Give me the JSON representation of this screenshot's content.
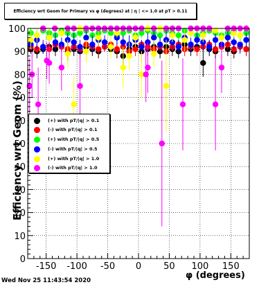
{
  "title": "Efficiency wrt Geom for Primary vs φ (degrees) at | η | <= 1.0 at pT > 0.11",
  "timestamp": "Wed Nov 25 11:43:54 2020",
  "chart_data": {
    "type": "scatter",
    "xlabel": "φ (degrees)",
    "ylabel": "Efficiency wrt Geom (%)",
    "xlim": [
      -180,
      180
    ],
    "ylim": [
      0,
      100
    ],
    "x_ticks": [
      "-150",
      "-100",
      "-50",
      "0",
      "50",
      "100",
      "150"
    ],
    "y_ticks": [
      "0",
      "10",
      "20",
      "30",
      "40",
      "50",
      "60",
      "70",
      "80",
      "90",
      "100"
    ],
    "grid": true,
    "legend_position": "middle-left",
    "series": [
      {
        "name": "(+) with pT/|q| > 0.1",
        "color": "#000000",
        "x": [
          -175,
          -165,
          -155,
          -145,
          -135,
          -125,
          -115,
          -105,
          -95,
          -85,
          -75,
          -65,
          -55,
          -45,
          -35,
          -25,
          -15,
          -5,
          5,
          15,
          25,
          35,
          45,
          55,
          65,
          75,
          85,
          95,
          105,
          115,
          125,
          135,
          145,
          155,
          165,
          175
        ],
        "y": [
          91,
          90,
          91,
          92,
          91,
          92,
          90,
          91,
          90,
          92,
          91,
          90,
          92,
          91,
          90,
          88,
          91,
          92,
          90,
          91,
          92,
          90,
          92,
          91,
          90,
          93,
          91,
          92,
          85,
          91,
          90,
          92,
          91,
          90,
          92,
          91
        ],
        "err": [
          2,
          3,
          2,
          2,
          3,
          2,
          4,
          3,
          3,
          2,
          3,
          3,
          2,
          3,
          3,
          5,
          3,
          2,
          4,
          3,
          2,
          3,
          2,
          3,
          3,
          2,
          3,
          2,
          6,
          3,
          3,
          2,
          3,
          3,
          2,
          3
        ]
      },
      {
        "name": "(-) with pT/|q| > 0.1",
        "color": "#ff0000",
        "x": [
          -175,
          -165,
          -155,
          -145,
          -135,
          -125,
          -115,
          -105,
          -95,
          -85,
          -75,
          -65,
          -55,
          -45,
          -35,
          -25,
          -15,
          -5,
          5,
          15,
          25,
          35,
          45,
          55,
          65,
          75,
          85,
          95,
          105,
          115,
          125,
          135,
          145,
          155,
          165,
          175
        ],
        "y": [
          92,
          91,
          92,
          91,
          93,
          92,
          91,
          92,
          91,
          93,
          92,
          91,
          92,
          93,
          91,
          92,
          90,
          91,
          93,
          92,
          91,
          92,
          90,
          92,
          93,
          91,
          92,
          91,
          92,
          93,
          91,
          92,
          93,
          91,
          92,
          91
        ],
        "err": [
          2,
          2,
          2,
          3,
          2,
          2,
          3,
          2,
          3,
          2,
          2,
          3,
          2,
          2,
          3,
          3,
          3,
          3,
          2,
          2,
          3,
          2,
          3,
          2,
          2,
          3,
          2,
          3,
          2,
          2,
          3,
          2,
          2,
          3,
          2,
          3
        ]
      },
      {
        "name": "(+) with pT/|q| > 0.5",
        "color": "#00ff00",
        "x": [
          -175,
          -165,
          -155,
          -145,
          -135,
          -125,
          -115,
          -105,
          -95,
          -85,
          -75,
          -65,
          -55,
          -45,
          -35,
          -25,
          -15,
          -5,
          5,
          15,
          25,
          35,
          45,
          55,
          65,
          75,
          85,
          95,
          105,
          115,
          125,
          135,
          145,
          155,
          165,
          175
        ],
        "y": [
          98,
          97,
          99,
          98,
          97,
          99,
          98,
          97,
          98,
          99,
          97,
          98,
          99,
          98,
          97,
          98,
          99,
          97,
          98,
          99,
          98,
          97,
          99,
          98,
          97,
          99,
          98,
          97,
          98,
          99,
          98,
          97,
          98,
          99,
          97,
          98
        ],
        "err": [
          2,
          2,
          1,
          2,
          3,
          1,
          2,
          3,
          2,
          1,
          3,
          2,
          1,
          2,
          3,
          2,
          1,
          3,
          2,
          1,
          2,
          3,
          1,
          2,
          3,
          1,
          2,
          3,
          2,
          1,
          2,
          3,
          2,
          1,
          3,
          2
        ]
      },
      {
        "name": "(-) with pT/|q| > 0.5",
        "color": "#0000ff",
        "x": [
          -175,
          -165,
          -155,
          -145,
          -135,
          -125,
          -115,
          -105,
          -95,
          -85,
          -75,
          -65,
          -55,
          -45,
          -35,
          -25,
          -15,
          -5,
          5,
          15,
          25,
          35,
          45,
          55,
          65,
          75,
          85,
          95,
          105,
          115,
          125,
          135,
          145,
          155,
          165,
          175
        ],
        "y": [
          93,
          95,
          92,
          96,
          94,
          93,
          95,
          94,
          92,
          96,
          93,
          95,
          94,
          92,
          96,
          94,
          93,
          95,
          92,
          94,
          96,
          93,
          95,
          94,
          92,
          96,
          93,
          95,
          94,
          92,
          95,
          93,
          96,
          94,
          93,
          95
        ],
        "err": [
          3,
          4,
          3,
          3,
          4,
          3,
          3,
          4,
          3,
          3,
          4,
          3,
          3,
          4,
          3,
          3,
          4,
          3,
          3,
          4,
          3,
          3,
          4,
          3,
          3,
          4,
          3,
          3,
          4,
          3,
          3,
          4,
          3,
          3,
          4,
          3
        ]
      },
      {
        "name": "(+) with pT/|q| > 1.0",
        "color": "#ffff00",
        "x": [
          -175,
          -165,
          -155,
          -145,
          -135,
          -125,
          -115,
          -105,
          -95,
          -85,
          -75,
          -65,
          -55,
          -45,
          -35,
          -25,
          -15,
          -5,
          5,
          15,
          25,
          35,
          45,
          55,
          65,
          75,
          85,
          95,
          105,
          115,
          125,
          135,
          145,
          155,
          165,
          175
        ],
        "y": [
          95,
          97,
          100,
          96,
          100,
          98,
          89,
          67,
          100,
          90,
          100,
          96,
          100,
          92,
          98,
          83,
          88,
          96,
          80,
          100,
          89,
          100,
          75,
          97,
          100,
          95,
          98,
          100,
          97,
          100,
          99,
          96,
          100,
          98,
          97,
          100
        ],
        "err": [
          4,
          3,
          0,
          4,
          0,
          2,
          6,
          12,
          0,
          5,
          0,
          4,
          0,
          5,
          2,
          9,
          6,
          4,
          10,
          0,
          6,
          0,
          20,
          3,
          0,
          5,
          2,
          0,
          3,
          0,
          1,
          4,
          0,
          2,
          3,
          0
        ]
      },
      {
        "name": "(-) with pT/|q| > 1.0",
        "color": "#ff00ff",
        "x": [
          -177,
          -173,
          -163,
          -155,
          -149,
          -145,
          -136,
          -125,
          -115,
          -105,
          -95,
          -85,
          -75,
          -65,
          -55,
          -45,
          -35,
          -25,
          -15,
          -5,
          5,
          12,
          15,
          25,
          38,
          45,
          55,
          65,
          72,
          85,
          95,
          105,
          115,
          125,
          135,
          145,
          155,
          165,
          175
        ],
        "y": [
          75,
          80,
          67,
          100,
          86,
          85,
          100,
          83,
          100,
          100,
          75,
          100,
          100,
          100,
          100,
          100,
          100,
          100,
          100,
          100,
          100,
          80,
          83,
          100,
          50,
          100,
          100,
          100,
          67,
          100,
          100,
          100,
          100,
          67,
          83,
          100,
          100,
          100,
          100
        ],
        "err": [
          12,
          10,
          16,
          0,
          8,
          9,
          0,
          10,
          0,
          0,
          14,
          0,
          0,
          0,
          0,
          0,
          0,
          0,
          0,
          0,
          0,
          12,
          11,
          0,
          36,
          0,
          0,
          0,
          20,
          0,
          0,
          0,
          0,
          20,
          11,
          0,
          0,
          0,
          0
        ]
      }
    ]
  }
}
